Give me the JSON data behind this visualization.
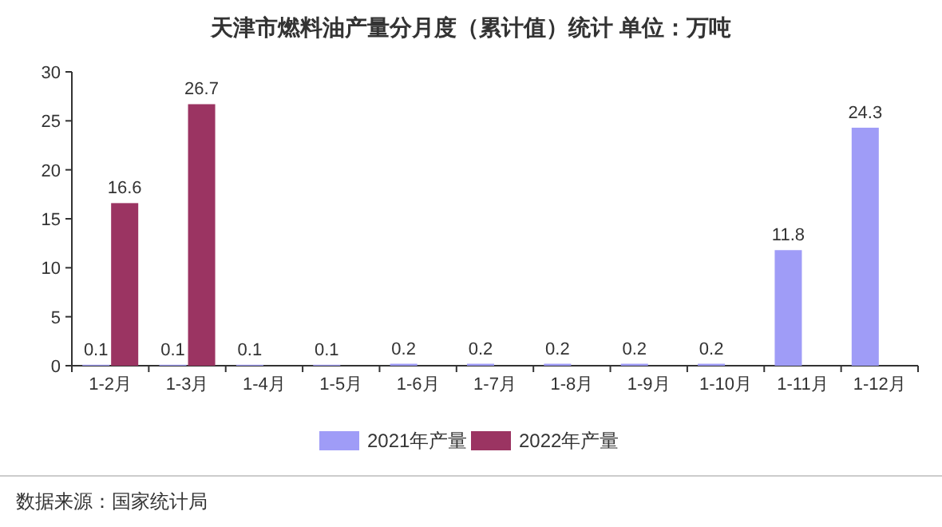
{
  "chart_data": {
    "type": "bar",
    "title": "天津市燃料油产量分月度（累计值）统计  单位：万吨",
    "categories": [
      "1-2月",
      "1-3月",
      "1-4月",
      "1-5月",
      "1-6月",
      "1-7月",
      "1-8月",
      "1-9月",
      "1-10月",
      "1-11月",
      "1-12月"
    ],
    "series": [
      {
        "name": "2021年产量",
        "color": "#9f9cf7",
        "values": [
          0.1,
          0.1,
          0.1,
          0.1,
          0.2,
          0.2,
          0.2,
          0.2,
          0.2,
          11.8,
          24.3
        ]
      },
      {
        "name": "2022年产量",
        "color": "#9b3462",
        "values": [
          16.6,
          26.7,
          null,
          null,
          null,
          null,
          null,
          null,
          null,
          null,
          null
        ]
      }
    ],
    "ylim": [
      0,
      30
    ],
    "yticks": [
      0,
      5,
      10,
      15,
      20,
      25,
      30
    ],
    "grid": false,
    "data_labels": true,
    "legend": "bottom",
    "annotations": [
      "数据来源：国家统计局"
    ]
  }
}
